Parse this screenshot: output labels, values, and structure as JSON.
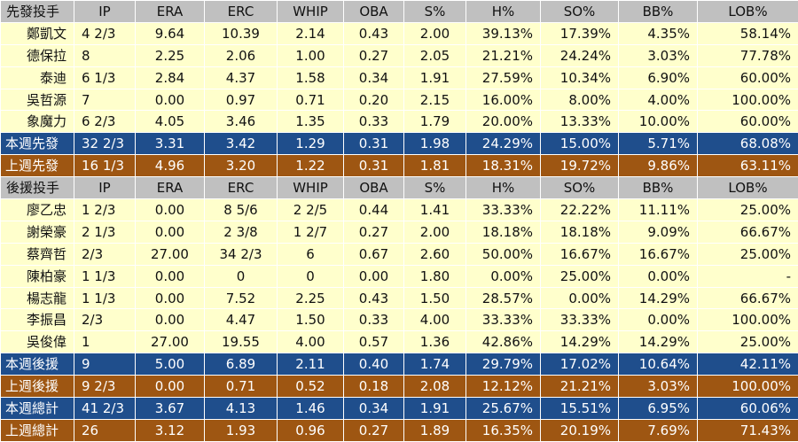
{
  "headers_start": [
    "先發投手",
    "IP",
    "ERA",
    "ERC",
    "WHIP",
    "OBA",
    "S%",
    "H%",
    "SO%",
    "BB%",
    "LOB%"
  ],
  "starters": [
    [
      "鄭凱文",
      "4 2/3",
      "9.64",
      "10.39",
      "2.14",
      "0.43",
      "2.00",
      "39.13%",
      "17.39%",
      "4.35%",
      "58.14%"
    ],
    [
      "德保拉",
      "8",
      "2.25",
      "2.06",
      "1.00",
      "0.27",
      "2.05",
      "21.21%",
      "24.24%",
      "3.03%",
      "77.78%"
    ],
    [
      "泰迪",
      "6 1/3",
      "2.84",
      "4.37",
      "1.58",
      "0.34",
      "1.91",
      "27.59%",
      "10.34%",
      "6.90%",
      "60.00%"
    ],
    [
      "吳哲源",
      "7",
      "0.00",
      "0.97",
      "0.71",
      "0.20",
      "2.15",
      "16.00%",
      "8.00%",
      "4.00%",
      "100.00%"
    ],
    [
      "象魔力",
      "6 2/3",
      "4.05",
      "3.46",
      "1.35",
      "0.33",
      "1.79",
      "20.00%",
      "13.33%",
      "10.00%",
      "60.00%"
    ]
  ],
  "starters_this_week": [
    "本週先發",
    "32 2/3",
    "3.31",
    "3.42",
    "1.29",
    "0.31",
    "1.98",
    "24.29%",
    "15.00%",
    "5.71%",
    "68.08%"
  ],
  "starters_last_week": [
    "上週先發",
    "16 1/3",
    "4.96",
    "3.20",
    "1.22",
    "0.31",
    "1.81",
    "18.31%",
    "19.72%",
    "9.86%",
    "63.11%"
  ],
  "headers_relief": [
    "後援投手",
    "IP",
    "ERA",
    "ERC",
    "WHIP",
    "OBA",
    "S%",
    "H%",
    "SO%",
    "BB%",
    "LOB%"
  ],
  "relievers": [
    [
      "廖乙忠",
      "1 2/3",
      "0.00",
      "8 5/6",
      "2 2/5",
      "0.44",
      "1.41",
      "33.33%",
      "22.22%",
      "11.11%",
      "25.00%"
    ],
    [
      "謝榮豪",
      "2 1/3",
      "0.00",
      "2 3/8",
      "1 2/7",
      "0.27",
      "2.00",
      "18.18%",
      "18.18%",
      "9.09%",
      "66.67%"
    ],
    [
      "蔡齊哲",
      "2/3",
      "27.00",
      "34 2/3",
      "6",
      "0.67",
      "2.60",
      "50.00%",
      "16.67%",
      "16.67%",
      "25.00%"
    ],
    [
      "陳柏豪",
      "1 1/3",
      "0.00",
      "0",
      "0",
      "0.00",
      "1.80",
      "0.00%",
      "25.00%",
      "0.00%",
      "-"
    ],
    [
      "楊志龍",
      "1 1/3",
      "0.00",
      "7.52",
      "2.25",
      "0.43",
      "1.50",
      "28.57%",
      "0.00%",
      "14.29%",
      "66.67%"
    ],
    [
      "李振昌",
      "2/3",
      "0.00",
      "4.47",
      "1.50",
      "0.33",
      "4.00",
      "33.33%",
      "33.33%",
      "0.00%",
      "100.00%"
    ],
    [
      "吳俊偉",
      "1",
      "27.00",
      "19.55",
      "4.00",
      "0.57",
      "1.36",
      "42.86%",
      "14.29%",
      "14.29%",
      "25.00%"
    ]
  ],
  "relief_this_week": [
    "本週後援",
    "9",
    "5.00",
    "6.89",
    "2.11",
    "0.40",
    "1.74",
    "29.79%",
    "17.02%",
    "10.64%",
    "42.11%"
  ],
  "relief_last_week": [
    "上週後援",
    "9 2/3",
    "0.00",
    "0.71",
    "0.52",
    "0.18",
    "2.08",
    "12.12%",
    "21.21%",
    "3.03%",
    "100.00%"
  ],
  "total_this_week": [
    "本週總計",
    "41 2/3",
    "3.67",
    "4.13",
    "1.46",
    "0.34",
    "1.91",
    "25.67%",
    "15.51%",
    "6.95%",
    "60.06%"
  ],
  "total_last_week": [
    "上週總計",
    "26",
    "3.12",
    "1.93",
    "0.96",
    "0.27",
    "1.89",
    "16.35%",
    "20.19%",
    "7.69%",
    "71.43%"
  ],
  "colors": {
    "header_bg": "#c0c0c0",
    "row_bg": "#ffffcc",
    "this_week_bg": "#1f4e8c",
    "last_week_bg": "#9e5612"
  }
}
